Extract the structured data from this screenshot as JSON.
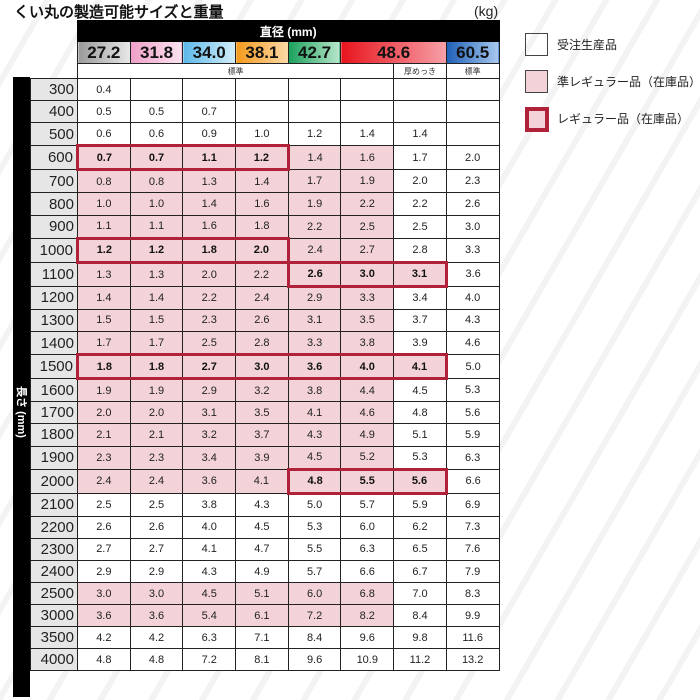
{
  "title": "くい丸の製造可能サイズと重量",
  "unit": "(kg)",
  "diameter_header": "直径 (mm)",
  "length_header": "長さ (mm)",
  "colors": {
    "pink_fill": "#f3d3d8",
    "regular_border": "#b0223a"
  },
  "diameters": [
    {
      "label": "27.2",
      "span": 1,
      "bg": "linear-gradient(90deg,#9a9a9a,#e8e8e8)"
    },
    {
      "label": "31.8",
      "span": 1,
      "bg": "linear-gradient(90deg,#ef9fc8,#fbe3ef)"
    },
    {
      "label": "34.0",
      "span": 1,
      "bg": "linear-gradient(90deg,#5cb8e8,#d4eefa)"
    },
    {
      "label": "38.1",
      "span": 1,
      "bg": "linear-gradient(90deg,#f59a1c,#fbd9a8)"
    },
    {
      "label": "42.7",
      "span": 1,
      "bg": "linear-gradient(90deg,#1aa05a,#b8e6cc)"
    },
    {
      "label": "48.6",
      "span": 2,
      "bg": "linear-gradient(90deg,#e8141c,#f7a0a8)"
    },
    {
      "label": "60.5",
      "span": 1,
      "bg": "linear-gradient(90deg,#1e5fb8,#a8c8ee)"
    }
  ],
  "subheaders": [
    {
      "label": "標準",
      "span": 6
    },
    {
      "label": "厚めっき",
      "span": 1
    },
    {
      "label": "標準",
      "span": 1
    }
  ],
  "rows": [
    {
      "length": "300",
      "values": [
        "0.4",
        "",
        "",
        "",
        "",
        "",
        "",
        ""
      ],
      "pink": false,
      "regular": []
    },
    {
      "length": "400",
      "values": [
        "0.5",
        "0.5",
        "0.7",
        "",
        "",
        "",
        "",
        ""
      ],
      "pink": false,
      "regular": []
    },
    {
      "length": "500",
      "values": [
        "0.6",
        "0.6",
        "0.9",
        "1.0",
        "1.2",
        "1.4",
        "1.4",
        ""
      ],
      "pink": false,
      "regular": []
    },
    {
      "length": "600",
      "values": [
        "0.7",
        "0.7",
        "1.1",
        "1.2",
        "1.4",
        "1.6",
        "1.7",
        "2.0"
      ],
      "pink": true,
      "regular": [
        0,
        1,
        2,
        3
      ]
    },
    {
      "length": "700",
      "values": [
        "0.8",
        "0.8",
        "1.3",
        "1.4",
        "1.7",
        "1.9",
        "2.0",
        "2.3"
      ],
      "pink": true,
      "regular": []
    },
    {
      "length": "800",
      "values": [
        "1.0",
        "1.0",
        "1.4",
        "1.6",
        "1.9",
        "2.2",
        "2.2",
        "2.6"
      ],
      "pink": true,
      "regular": []
    },
    {
      "length": "900",
      "values": [
        "1.1",
        "1.1",
        "1.6",
        "1.8",
        "2.2",
        "2.5",
        "2.5",
        "3.0"
      ],
      "pink": true,
      "regular": []
    },
    {
      "length": "1000",
      "values": [
        "1.2",
        "1.2",
        "1.8",
        "2.0",
        "2.4",
        "2.7",
        "2.8",
        "3.3"
      ],
      "pink": true,
      "regular": [
        0,
        1,
        2,
        3
      ]
    },
    {
      "length": "1100",
      "values": [
        "1.3",
        "1.3",
        "2.0",
        "2.2",
        "2.6",
        "3.0",
        "3.1",
        "3.6"
      ],
      "pink": true,
      "regular": [
        4,
        5,
        6
      ]
    },
    {
      "length": "1200",
      "values": [
        "1.4",
        "1.4",
        "2.2",
        "2.4",
        "2.9",
        "3.3",
        "3.4",
        "4.0"
      ],
      "pink": true,
      "regular": []
    },
    {
      "length": "1300",
      "values": [
        "1.5",
        "1.5",
        "2.3",
        "2.6",
        "3.1",
        "3.5",
        "3.7",
        "4.3"
      ],
      "pink": true,
      "regular": []
    },
    {
      "length": "1400",
      "values": [
        "1.7",
        "1.7",
        "2.5",
        "2.8",
        "3.3",
        "3.8",
        "3.9",
        "4.6"
      ],
      "pink": true,
      "regular": []
    },
    {
      "length": "1500",
      "values": [
        "1.8",
        "1.8",
        "2.7",
        "3.0",
        "3.6",
        "4.0",
        "4.1",
        "5.0"
      ],
      "pink": true,
      "regular": [
        0,
        1,
        2,
        3,
        4,
        5,
        6
      ]
    },
    {
      "length": "1600",
      "values": [
        "1.9",
        "1.9",
        "2.9",
        "3.2",
        "3.8",
        "4.4",
        "4.5",
        "5.3"
      ],
      "pink": true,
      "regular": []
    },
    {
      "length": "1700",
      "values": [
        "2.0",
        "2.0",
        "3.1",
        "3.5",
        "4.1",
        "4.6",
        "4.8",
        "5.6"
      ],
      "pink": true,
      "regular": []
    },
    {
      "length": "1800",
      "values": [
        "2.1",
        "2.1",
        "3.2",
        "3.7",
        "4.3",
        "4.9",
        "5.1",
        "5.9"
      ],
      "pink": true,
      "regular": []
    },
    {
      "length": "1900",
      "values": [
        "2.3",
        "2.3",
        "3.4",
        "3.9",
        "4.5",
        "5.2",
        "5.3",
        "6.3"
      ],
      "pink": true,
      "regular": []
    },
    {
      "length": "2000",
      "values": [
        "2.4",
        "2.4",
        "3.6",
        "4.1",
        "4.8",
        "5.5",
        "5.6",
        "6.6"
      ],
      "pink": true,
      "regular": [
        4,
        5,
        6
      ]
    },
    {
      "length": "2100",
      "values": [
        "2.5",
        "2.5",
        "3.8",
        "4.3",
        "5.0",
        "5.7",
        "5.9",
        "6.9"
      ],
      "pink": false,
      "regular": []
    },
    {
      "length": "2200",
      "values": [
        "2.6",
        "2.6",
        "4.0",
        "4.5",
        "5.3",
        "6.0",
        "6.2",
        "7.3"
      ],
      "pink": false,
      "regular": []
    },
    {
      "length": "2300",
      "values": [
        "2.7",
        "2.7",
        "4.1",
        "4.7",
        "5.5",
        "6.3",
        "6.5",
        "7.6"
      ],
      "pink": false,
      "regular": []
    },
    {
      "length": "2400",
      "values": [
        "2.9",
        "2.9",
        "4.3",
        "4.9",
        "5.7",
        "6.6",
        "6.7",
        "7.9"
      ],
      "pink": false,
      "regular": []
    },
    {
      "length": "2500",
      "values": [
        "3.0",
        "3.0",
        "4.5",
        "5.1",
        "6.0",
        "6.8",
        "7.0",
        "8.3"
      ],
      "pink": true,
      "regular": []
    },
    {
      "length": "3000",
      "values": [
        "3.6",
        "3.6",
        "5.4",
        "6.1",
        "7.2",
        "8.2",
        "8.4",
        "9.9"
      ],
      "pink": true,
      "regular": []
    },
    {
      "length": "3500",
      "values": [
        "4.2",
        "4.2",
        "6.3",
        "7.1",
        "8.4",
        "9.6",
        "9.8",
        "11.6"
      ],
      "pink": false,
      "regular": []
    },
    {
      "length": "4000",
      "values": [
        "4.8",
        "4.8",
        "7.2",
        "8.1",
        "9.6",
        "10.9",
        "11.2",
        "13.2"
      ],
      "pink": false,
      "regular": []
    }
  ],
  "legend": [
    {
      "label": "受注生産品",
      "type": "made-to-order"
    },
    {
      "label": "準レギュラー品（在庫品）",
      "type": "semi-regular"
    },
    {
      "label": "レギュラー品（在庫品）",
      "type": "regular"
    }
  ]
}
